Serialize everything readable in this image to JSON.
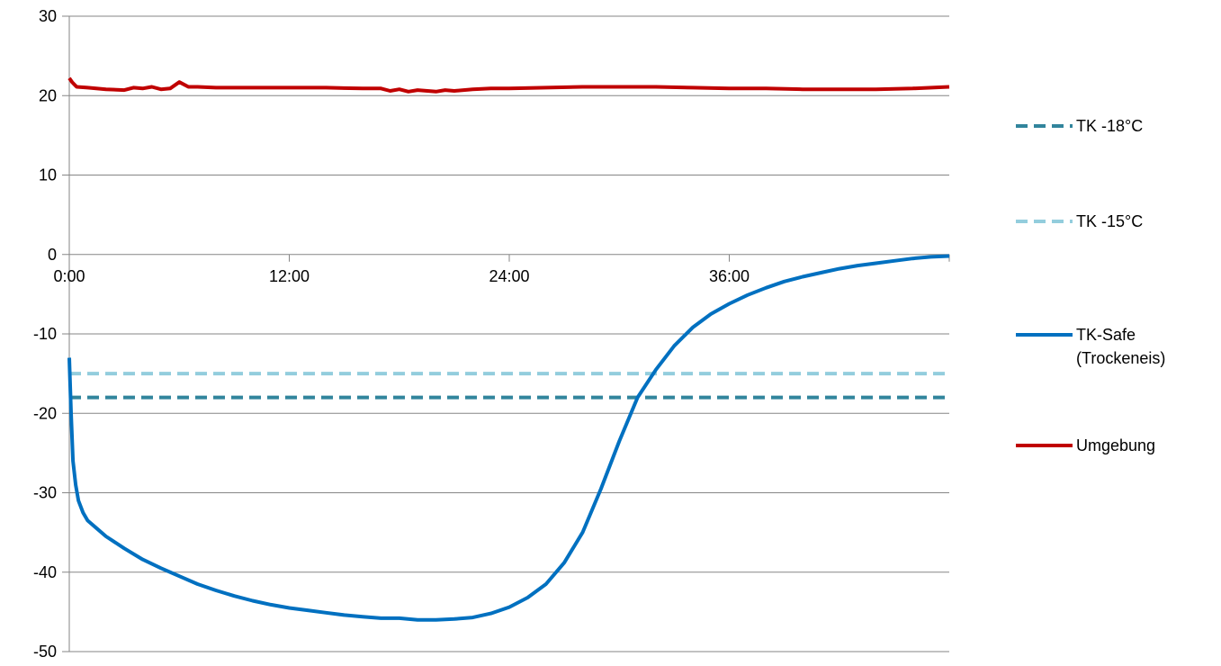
{
  "chart_data": {
    "type": "line",
    "title": "",
    "xlabel": "",
    "ylabel": "",
    "x_unit": "hours",
    "xlim": [
      0,
      48
    ],
    "ylim": [
      -50,
      30
    ],
    "y_ticks": [
      30,
      20,
      10,
      0,
      -10,
      -20,
      -30,
      -40,
      -50
    ],
    "y_tick_labels": [
      "30",
      "20",
      "10",
      "0",
      "-10",
      "-20",
      "-30",
      "-40",
      "-50"
    ],
    "x_ticks": [
      0,
      12,
      24,
      36
    ],
    "x_tick_labels": [
      "0:00",
      "12:00",
      "24:00",
      "36:00"
    ],
    "x_axis_at_y": 0,
    "grid": "horizontal",
    "legend_position": "right",
    "series": [
      {
        "name": "TK -18°C",
        "color": "#31859C",
        "style": "dashed",
        "x": [
          0,
          48
        ],
        "y": [
          -18,
          -18
        ]
      },
      {
        "name": "TK -15°C",
        "color": "#93CDDD",
        "style": "dashed",
        "x": [
          0,
          48
        ],
        "y": [
          -15,
          -15
        ]
      },
      {
        "name": "TK-Safe (Trockeneis)",
        "legend_lines": [
          "TK-Safe",
          "(Trockeneis)"
        ],
        "color": "#0070C0",
        "style": "solid",
        "x": [
          0,
          0.1,
          0.2,
          0.35,
          0.5,
          0.75,
          1,
          1.5,
          2,
          3,
          4,
          5,
          6,
          7,
          8,
          9,
          10,
          11,
          12,
          13,
          14,
          15,
          16,
          17,
          18,
          19,
          20,
          21,
          22,
          23,
          24,
          25,
          26,
          27,
          28,
          29,
          30,
          31,
          32,
          33,
          34,
          35,
          36,
          37,
          38,
          39,
          40,
          41,
          42,
          43,
          44,
          45,
          46,
          47,
          48
        ],
        "y": [
          -13,
          -20,
          -26,
          -29,
          -31,
          -32.5,
          -33.5,
          -34.5,
          -35.5,
          -37,
          -38.4,
          -39.5,
          -40.5,
          -41.5,
          -42.3,
          -43,
          -43.6,
          -44.1,
          -44.5,
          -44.8,
          -45.1,
          -45.4,
          -45.6,
          -45.8,
          -45.8,
          -46,
          -46,
          -45.9,
          -45.7,
          -45.2,
          -44.4,
          -43.2,
          -41.5,
          -38.8,
          -35,
          -29.5,
          -23.5,
          -18,
          -14.5,
          -11.5,
          -9.2,
          -7.5,
          -6.2,
          -5.1,
          -4.2,
          -3.4,
          -2.8,
          -2.3,
          -1.8,
          -1.4,
          -1.1,
          -0.8,
          -0.5,
          -0.3,
          -0.2
        ]
      },
      {
        "name": "Umgebung",
        "color": "#C00000",
        "style": "solid",
        "x": [
          0,
          0.15,
          0.4,
          1,
          2,
          3,
          3.5,
          4,
          4.5,
          5,
          5.5,
          6,
          6.5,
          7,
          8,
          9,
          10,
          12,
          14,
          16,
          17,
          17.5,
          18,
          18.5,
          19,
          20,
          20.5,
          21,
          22,
          23,
          24,
          26,
          28,
          30,
          32,
          34,
          36,
          38,
          40,
          42,
          44,
          46,
          48
        ],
        "y": [
          22.2,
          21.7,
          21.1,
          21,
          20.8,
          20.7,
          21,
          20.9,
          21.1,
          20.8,
          20.9,
          21.7,
          21.1,
          21.1,
          21,
          21,
          21,
          21,
          21,
          20.9,
          20.9,
          20.6,
          20.8,
          20.5,
          20.7,
          20.5,
          20.7,
          20.6,
          20.8,
          20.9,
          20.9,
          21,
          21.1,
          21.1,
          21.1,
          21,
          20.9,
          20.9,
          20.8,
          20.8,
          20.8,
          20.9,
          21.1
        ]
      }
    ]
  }
}
